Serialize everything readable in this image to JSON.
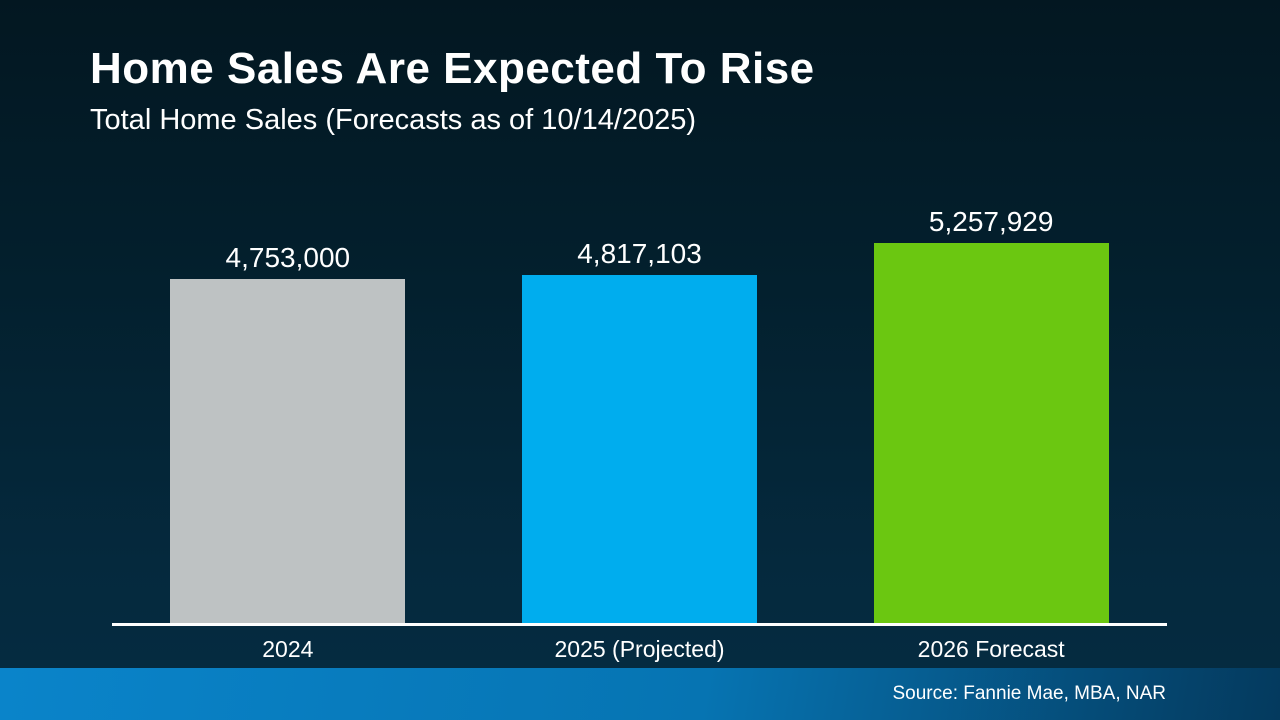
{
  "slide": {
    "title": "Home Sales Are Expected To Rise",
    "subtitle": "Total Home Sales (Forecasts as of 10/14/2025)",
    "source": "Source: Fannie Mae, MBA, NAR"
  },
  "colors": {
    "background_top": "#031721",
    "background_bottom": "#052c42",
    "axis_line": "#ffffff",
    "text": "#ffffff",
    "footer_left": "#0a84ca",
    "footer_right": "#043a5e",
    "bar_gray": "#bec2c3",
    "bar_blue": "#00adee",
    "bar_green": "#6bc711"
  },
  "chart_data": {
    "type": "bar",
    "title": "Home Sales Are Expected To Rise",
    "subtitle": "Total Home Sales (Forecasts as of 10/14/2025)",
    "categories": [
      "2024",
      "2025 (Projected)",
      "2026 Forecast"
    ],
    "values": [
      4753000,
      4817103,
      5257929
    ],
    "value_labels": [
      "4,753,000",
      "4,817,103",
      "5,257,929"
    ],
    "bar_colors": [
      "#bec2c3",
      "#00adee",
      "#6bc711"
    ],
    "xlabel": "",
    "ylabel": "",
    "ylim": [
      0,
      5257929
    ],
    "grid": false,
    "legend": false,
    "source": "Source: Fannie Mae, MBA, NAR"
  }
}
